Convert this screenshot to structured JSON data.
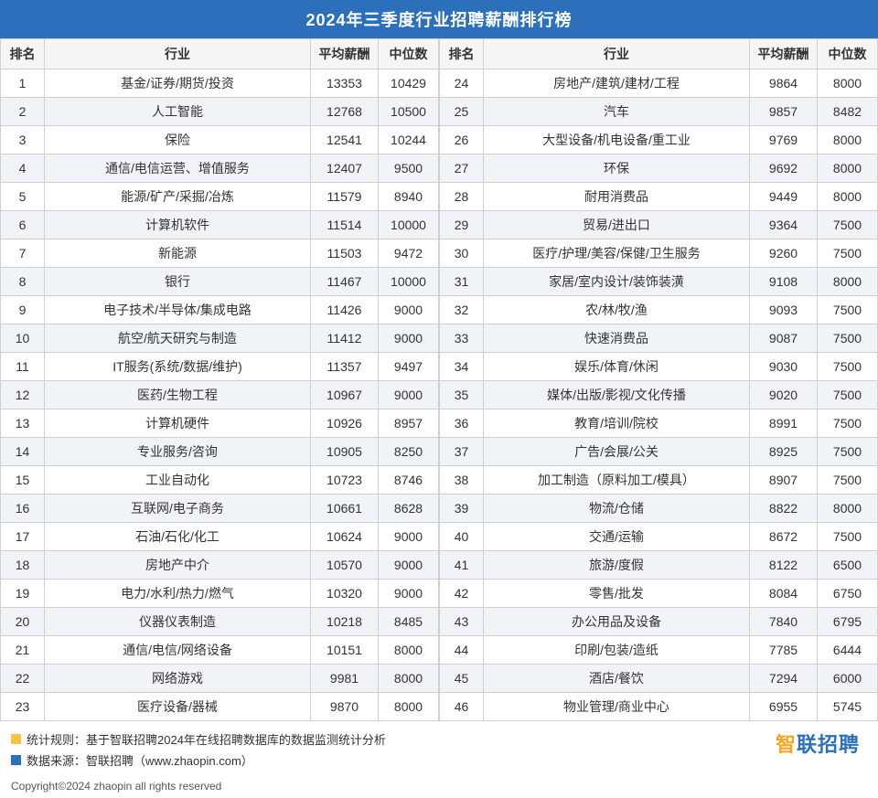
{
  "title": "2024年三季度行业招聘薪酬排行榜",
  "headers": {
    "rank": "排名",
    "industry": "行业",
    "avg": "平均薪酬",
    "median": "中位数"
  },
  "rows": [
    {
      "rank": 1,
      "industry": "基金/证券/期货/投资",
      "avg": 13353,
      "median": 10429
    },
    {
      "rank": 2,
      "industry": "人工智能",
      "avg": 12768,
      "median": 10500
    },
    {
      "rank": 3,
      "industry": "保险",
      "avg": 12541,
      "median": 10244
    },
    {
      "rank": 4,
      "industry": "通信/电信运营、增值服务",
      "avg": 12407,
      "median": 9500
    },
    {
      "rank": 5,
      "industry": "能源/矿产/采掘/冶炼",
      "avg": 11579,
      "median": 8940
    },
    {
      "rank": 6,
      "industry": "计算机软件",
      "avg": 11514,
      "median": 10000
    },
    {
      "rank": 7,
      "industry": "新能源",
      "avg": 11503,
      "median": 9472
    },
    {
      "rank": 8,
      "industry": "银行",
      "avg": 11467,
      "median": 10000
    },
    {
      "rank": 9,
      "industry": "电子技术/半导体/集成电路",
      "avg": 11426,
      "median": 9000
    },
    {
      "rank": 10,
      "industry": "航空/航天研究与制造",
      "avg": 11412,
      "median": 9000
    },
    {
      "rank": 11,
      "industry": "IT服务(系统/数据/维护)",
      "avg": 11357,
      "median": 9497
    },
    {
      "rank": 12,
      "industry": "医药/生物工程",
      "avg": 10967,
      "median": 9000
    },
    {
      "rank": 13,
      "industry": "计算机硬件",
      "avg": 10926,
      "median": 8957
    },
    {
      "rank": 14,
      "industry": "专业服务/咨询",
      "avg": 10905,
      "median": 8250
    },
    {
      "rank": 15,
      "industry": "工业自动化",
      "avg": 10723,
      "median": 8746
    },
    {
      "rank": 16,
      "industry": "互联网/电子商务",
      "avg": 10661,
      "median": 8628
    },
    {
      "rank": 17,
      "industry": "石油/石化/化工",
      "avg": 10624,
      "median": 9000
    },
    {
      "rank": 18,
      "industry": "房地产中介",
      "avg": 10570,
      "median": 9000
    },
    {
      "rank": 19,
      "industry": "电力/水利/热力/燃气",
      "avg": 10320,
      "median": 9000
    },
    {
      "rank": 20,
      "industry": "仪器仪表制造",
      "avg": 10218,
      "median": 8485
    },
    {
      "rank": 21,
      "industry": "通信/电信/网络设备",
      "avg": 10151,
      "median": 8000
    },
    {
      "rank": 22,
      "industry": "网络游戏",
      "avg": 9981,
      "median": 8000
    },
    {
      "rank": 23,
      "industry": "医疗设备/器械",
      "avg": 9870,
      "median": 8000
    },
    {
      "rank": 24,
      "industry": "房地产/建筑/建材/工程",
      "avg": 9864,
      "median": 8000
    },
    {
      "rank": 25,
      "industry": "汽车",
      "avg": 9857,
      "median": 8482
    },
    {
      "rank": 26,
      "industry": "大型设备/机电设备/重工业",
      "avg": 9769,
      "median": 8000
    },
    {
      "rank": 27,
      "industry": "环保",
      "avg": 9692,
      "median": 8000
    },
    {
      "rank": 28,
      "industry": "耐用消费品",
      "avg": 9449,
      "median": 8000
    },
    {
      "rank": 29,
      "industry": "贸易/进出口",
      "avg": 9364,
      "median": 7500
    },
    {
      "rank": 30,
      "industry": "医疗/护理/美容/保健/卫生服务",
      "avg": 9260,
      "median": 7500
    },
    {
      "rank": 31,
      "industry": "家居/室内设计/装饰装潢",
      "avg": 9108,
      "median": 8000
    },
    {
      "rank": 32,
      "industry": "农/林/牧/渔",
      "avg": 9093,
      "median": 7500
    },
    {
      "rank": 33,
      "industry": "快速消费品",
      "avg": 9087,
      "median": 7500
    },
    {
      "rank": 34,
      "industry": "娱乐/体育/休闲",
      "avg": 9030,
      "median": 7500
    },
    {
      "rank": 35,
      "industry": "媒体/出版/影视/文化传播",
      "avg": 9020,
      "median": 7500
    },
    {
      "rank": 36,
      "industry": "教育/培训/院校",
      "avg": 8991,
      "median": 7500
    },
    {
      "rank": 37,
      "industry": "广告/会展/公关",
      "avg": 8925,
      "median": 7500
    },
    {
      "rank": 38,
      "industry": "加工制造（原料加工/模具）",
      "avg": 8907,
      "median": 7500
    },
    {
      "rank": 39,
      "industry": "物流/仓储",
      "avg": 8822,
      "median": 8000
    },
    {
      "rank": 40,
      "industry": "交通/运输",
      "avg": 8672,
      "median": 7500
    },
    {
      "rank": 41,
      "industry": "旅游/度假",
      "avg": 8122,
      "median": 6500
    },
    {
      "rank": 42,
      "industry": "零售/批发",
      "avg": 8084,
      "median": 6750
    },
    {
      "rank": 43,
      "industry": "办公用品及设备",
      "avg": 7840,
      "median": 6795
    },
    {
      "rank": 44,
      "industry": "印刷/包装/造纸",
      "avg": 7785,
      "median": 6444
    },
    {
      "rank": 45,
      "industry": "酒店/餐饮",
      "avg": 7294,
      "median": 6000
    },
    {
      "rank": 46,
      "industry": "物业管理/商业中心",
      "avg": 6955,
      "median": 5745
    }
  ],
  "footer": {
    "rule_label": "统计规则：",
    "rule_text": "基于智联招聘2024年在线招聘数据库的数据监测统计分析",
    "source_label": "数据来源：",
    "source_text": "智联招聘（www.zhaopin.com）",
    "brand_prefix": "智",
    "brand_rest": "联招聘",
    "copyright": "Copyright©2024 zhaopin all rights reserved"
  },
  "style": {
    "title_bg": "#2c6fbb",
    "title_color": "#ffffff",
    "header_bg": "#f5f5f5",
    "row_even_bg": "#f0f3f7",
    "row_odd_bg": "#ffffff",
    "border_color": "#d0d0d0",
    "bullet_yellow": "#f6c445",
    "bullet_blue": "#2c6fbb",
    "brand_color": "#2c6fbb",
    "brand_accent": "#f6a623"
  }
}
